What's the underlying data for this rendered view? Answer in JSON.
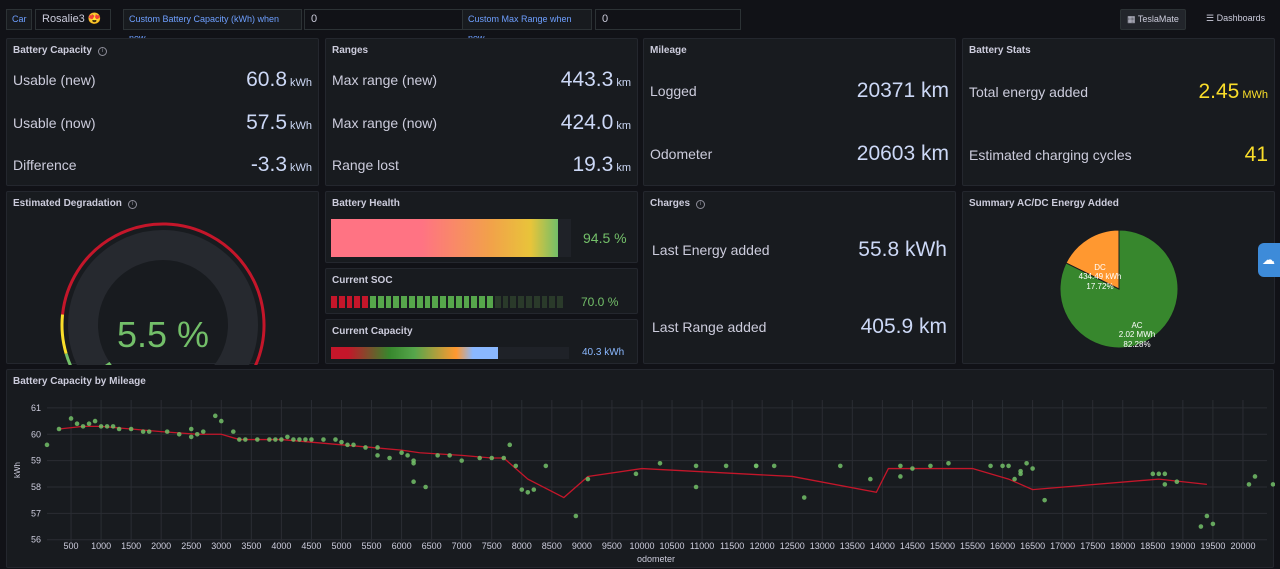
{
  "topbar": {
    "car_label": "Car",
    "car_value": "Rosalie3 😍",
    "cap_label": "Custom Battery Capacity (kWh) when new",
    "cap_value": "0",
    "range_label": "Custom Max Range when new",
    "range_value": "0",
    "teslamate_btn": "TeslaMate",
    "dashboards_btn": "Dashboards"
  },
  "battery_capacity": {
    "title": "Battery Capacity",
    "rows": [
      {
        "label": "Usable (new)",
        "value": "60.8",
        "unit": "kWh"
      },
      {
        "label": "Usable (now)",
        "value": "57.5",
        "unit": "kWh"
      },
      {
        "label": "Difference",
        "value": "-3.3",
        "unit": "kWh"
      }
    ]
  },
  "ranges": {
    "title": "Ranges",
    "rows": [
      {
        "label": "Max range (new)",
        "value": "443.3",
        "unit": "km"
      },
      {
        "label": "Max range (now)",
        "value": "424.0",
        "unit": "km"
      },
      {
        "label": "Range lost",
        "value": "19.3",
        "unit": "km"
      }
    ]
  },
  "mileage": {
    "title": "Mileage",
    "rows": [
      {
        "label": "Logged",
        "value": "20371 km"
      },
      {
        "label": "Odometer",
        "value": "20603 km"
      }
    ]
  },
  "battery_stats": {
    "title": "Battery Stats",
    "rows": [
      {
        "label": "Total energy added",
        "value": "2.45",
        "unit": "MWh"
      },
      {
        "label": "Estimated charging cycles",
        "value": "41",
        "unit": ""
      }
    ],
    "accent": "#fade2a"
  },
  "degradation": {
    "title": "Estimated Degradation",
    "value": "5.5 %",
    "fraction": 0.055,
    "color": "#73bf69"
  },
  "battery_health": {
    "title": "Battery Health",
    "value": "94.5 %",
    "fraction": 0.945
  },
  "current_soc": {
    "title": "Current SOC",
    "value": "70.0 %",
    "fraction": 0.7
  },
  "current_capacity": {
    "title": "Current Capacity",
    "value": "40.3 kWh",
    "fraction": 0.7
  },
  "charges": {
    "title": "Charges",
    "rows": [
      {
        "label": "Last Energy added",
        "value": "55.8 kWh"
      },
      {
        "label": "Last Range added",
        "value": "405.9 km"
      }
    ]
  },
  "summary": {
    "title": "Summary AC/DC Energy Added",
    "dc": {
      "label": "DC",
      "value": "434.49 kWh",
      "pct": "17.72%",
      "fraction": 0.1772,
      "color": "#ff9830"
    },
    "ac": {
      "label": "AC",
      "value": "2.02 MWh",
      "pct": "82.28%",
      "fraction": 0.8228,
      "color": "#37872d"
    }
  },
  "chart_data": {
    "type": "line",
    "title": "Battery Capacity by Mileage",
    "xlabel": "odometer",
    "ylabel": "kWh",
    "xlim": [
      100,
      20400
    ],
    "ylim": [
      55.8,
      61.3
    ],
    "x_ticks": [
      500,
      1000,
      1500,
      2000,
      2500,
      3000,
      3500,
      4000,
      4500,
      5000,
      5500,
      6000,
      6500,
      7000,
      7500,
      8000,
      8500,
      9000,
      9500,
      10000,
      10500,
      11000,
      11500,
      12000,
      12500,
      13000,
      13500,
      14000,
      14500,
      15000,
      15500,
      16000,
      16500,
      17000,
      17500,
      18000,
      18500,
      19000,
      19500,
      20000
    ],
    "y_ticks": [
      56,
      57,
      58,
      59,
      60,
      61
    ],
    "series": [
      {
        "kind": "line",
        "color": "#c4162a",
        "x": [
          300,
          700,
          1000,
          1500,
          2000,
          2600,
          3000,
          3300,
          4000,
          4500,
          5000,
          5500,
          6000,
          6300,
          7000,
          7500,
          7700,
          8100,
          8700,
          9100,
          10000,
          12500,
          13900,
          14100,
          15500,
          16100,
          16500,
          18600,
          19400
        ],
        "y": [
          60.2,
          60.3,
          60.3,
          60.2,
          60.1,
          60.0,
          60.0,
          59.8,
          59.8,
          59.7,
          59.6,
          59.5,
          59.4,
          59.3,
          59.2,
          59.1,
          59.1,
          58.3,
          57.6,
          58.4,
          58.7,
          58.4,
          57.8,
          58.7,
          58.7,
          58.3,
          57.9,
          58.3,
          58.1
        ]
      },
      {
        "kind": "scatter",
        "color": "#73bf69",
        "x": [
          100,
          300,
          500,
          600,
          700,
          800,
          900,
          1000,
          1100,
          1200,
          1300,
          1500,
          1700,
          1800,
          2100,
          2300,
          2500,
          2500,
          2600,
          2700,
          2900,
          3000,
          3200,
          3300,
          3400,
          3600,
          3800,
          3900,
          4000,
          4100,
          4200,
          4300,
          4400,
          4500,
          4700,
          4900,
          5000,
          5100,
          5200,
          5400,
          5600,
          5600,
          5800,
          6000,
          6100,
          6200,
          6200,
          6200,
          6400,
          6600,
          6800,
          7000,
          7300,
          7500,
          7700,
          7800,
          7900,
          8000,
          8100,
          8200,
          8400,
          8900,
          9100,
          9900,
          10300,
          10900,
          10900,
          11400,
          11900,
          11900,
          12200,
          12700,
          13300,
          13800,
          14300,
          14300,
          14500,
          14800,
          15100,
          15800,
          16000,
          16100,
          16200,
          16300,
          16300,
          16400,
          16500,
          16700,
          18500,
          18600,
          18700,
          18700,
          18900,
          19300,
          19400,
          19500,
          20100,
          20200,
          20500
        ],
        "y": [
          59.6,
          60.2,
          60.6,
          60.4,
          60.3,
          60.4,
          60.5,
          60.3,
          60.3,
          60.3,
          60.2,
          60.2,
          60.1,
          60.1,
          60.1,
          60.0,
          59.9,
          60.2,
          60.0,
          60.1,
          60.7,
          60.5,
          60.1,
          59.8,
          59.8,
          59.8,
          59.8,
          59.8,
          59.8,
          59.9,
          59.8,
          59.8,
          59.8,
          59.8,
          59.8,
          59.8,
          59.7,
          59.6,
          59.6,
          59.5,
          59.5,
          59.2,
          59.1,
          59.3,
          59.2,
          59.0,
          58.9,
          58.2,
          58.0,
          59.2,
          59.2,
          59.0,
          59.1,
          59.1,
          59.1,
          59.6,
          58.8,
          57.9,
          57.8,
          57.9,
          58.8,
          56.9,
          58.3,
          58.5,
          58.9,
          58.0,
          58.8,
          58.8,
          58.8,
          58.8,
          58.8,
          57.6,
          58.8,
          58.3,
          58.8,
          58.4,
          58.7,
          58.8,
          58.9,
          58.8,
          58.8,
          58.8,
          58.3,
          58.5,
          58.6,
          58.9,
          58.7,
          57.5,
          58.5,
          58.5,
          58.1,
          58.5,
          58.2,
          56.5,
          56.9,
          56.6,
          58.1,
          58.4,
          58.1
        ]
      }
    ],
    "grid": true
  },
  "chart_meta": {
    "title": "Battery Capacity by Mileage",
    "xlabel": "odometer",
    "ylabel": "kWh"
  }
}
